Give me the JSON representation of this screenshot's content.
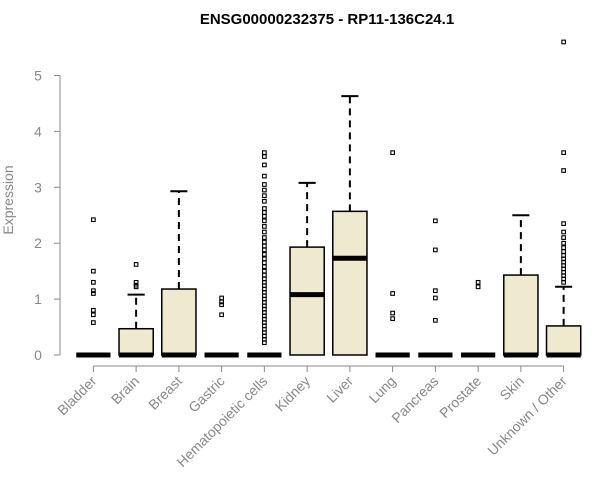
{
  "chart_data": {
    "type": "boxplot",
    "title": "ENSG00000232375 - RP11-136C24.1",
    "ylabel": "Expression",
    "xlabel": "",
    "ylim": [
      0,
      5.8
    ],
    "yticks": [
      0,
      1,
      2,
      3,
      4,
      5
    ],
    "grid": false,
    "colors": {
      "box_fill": "#efe9d0",
      "stroke": "#000000",
      "axis": "#888888"
    },
    "categories": [
      "Bladder",
      "Brain",
      "Breast",
      "Gastric",
      "Hematopoietic cells",
      "Kidney",
      "Liver",
      "Lung",
      "Pancreas",
      "Prostate",
      "Skin",
      "Unknown / Other"
    ],
    "boxes": [
      {
        "category": "Bladder",
        "min": 0,
        "q1": 0,
        "median": 0,
        "q3": 0,
        "max": 0,
        "outliers": [
          2.42,
          1.5,
          1.3,
          1.15,
          1.1,
          0.8,
          0.72,
          0.58
        ]
      },
      {
        "category": "Brain",
        "min": 0,
        "q1": 0,
        "median": 0,
        "q3": 0.47,
        "max": 1.08,
        "outliers": [
          1.62,
          1.3,
          1.25,
          1.22
        ]
      },
      {
        "category": "Breast",
        "min": 0,
        "q1": 0,
        "median": 0,
        "q3": 1.18,
        "max": 2.93,
        "outliers": []
      },
      {
        "category": "Gastric",
        "min": 0,
        "q1": 0,
        "median": 0,
        "q3": 0,
        "max": 0,
        "outliers": [
          1.02,
          0.95,
          0.9,
          0.72
        ]
      },
      {
        "category": "Hematopoietic cells",
        "min": 0,
        "q1": 0,
        "median": 0,
        "q3": 0,
        "max": 0,
        "outliers": [
          3.62,
          3.55,
          3.4,
          3.2,
          3.05,
          2.95,
          2.85,
          2.75,
          2.62,
          2.55,
          2.48,
          2.4,
          2.3,
          2.2,
          2.1,
          2.02,
          1.95,
          1.88,
          1.8,
          1.72,
          1.65,
          1.58,
          1.5,
          1.43,
          1.36,
          1.3,
          1.24,
          1.18,
          1.12,
          1.06,
          1.0,
          0.94,
          0.88,
          0.82,
          0.76,
          0.7,
          0.64,
          0.58,
          0.52,
          0.46,
          0.4,
          0.34,
          0.28,
          0.22
        ]
      },
      {
        "category": "Kidney",
        "min": 0,
        "q1": 0,
        "median": 1.08,
        "q3": 1.93,
        "max": 3.08,
        "outliers": []
      },
      {
        "category": "Liver",
        "min": 0,
        "q1": 0,
        "median": 1.73,
        "q3": 2.57,
        "max": 4.63,
        "outliers": []
      },
      {
        "category": "Lung",
        "min": 0,
        "q1": 0,
        "median": 0,
        "q3": 0,
        "max": 0,
        "outliers": [
          3.62,
          1.1,
          0.75,
          0.65
        ]
      },
      {
        "category": "Pancreas",
        "min": 0,
        "q1": 0,
        "median": 0,
        "q3": 0,
        "max": 0,
        "outliers": [
          2.4,
          1.88,
          1.15,
          1.02,
          0.62
        ]
      },
      {
        "category": "Prostate",
        "min": 0,
        "q1": 0,
        "median": 0,
        "q3": 0,
        "max": 0,
        "outliers": [
          1.3,
          1.22
        ]
      },
      {
        "category": "Skin",
        "min": 0,
        "q1": 0,
        "median": 0,
        "q3": 1.43,
        "max": 2.5,
        "outliers": []
      },
      {
        "category": "Unknown / Other",
        "min": 0,
        "q1": 0,
        "median": 0,
        "q3": 0.52,
        "max": 1.22,
        "outliers": [
          5.6,
          3.62,
          3.3,
          2.35,
          2.2,
          2.1,
          2.0,
          1.92,
          1.85,
          1.78,
          1.72,
          1.66,
          1.6,
          1.54,
          1.48,
          1.42,
          1.36,
          1.3
        ]
      }
    ]
  }
}
